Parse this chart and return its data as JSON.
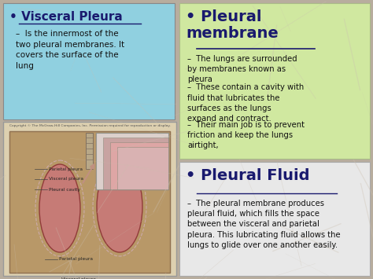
{
  "bg_color": "#b8ad9e",
  "box_visceral_color": "#90d0e0",
  "box_membrane_color": "#d0e8a0",
  "box_fluid_color": "#e8e8e8",
  "title_color": "#1a1a6e",
  "text_color": "#111111",
  "title_visceral": "Visceral Pleura",
  "bullet_visceral": "Is the innermost of the\ntwo pleural membranes. It\ncovers the surface of the\nlung",
  "title_pleural_membrane": "Pleural\nmembrane",
  "bullets_pleural_membrane": [
    "The lungs are surrounded\nby membranes known as\npleura",
    "These contain a cavity with\nfluid that lubricates the\nsurfaces as the lungs\nexpand and contract.",
    "Their main job is to prevent\nfriction and keep the lungs\nairtight,"
  ],
  "title_pleural_fluid": "Pleural Fluid",
  "bullet_pleural_fluid": "The pleural membrane produces\npleural fluid, which fills the space\nbetween the visceral and parietal\npleura. This lubricating fluid allows the\nlungs to glide over one another easily.",
  "lung_color": "#c87878",
  "lung_edge": "#8b3333",
  "image_bg": "#c8b890",
  "inset_color": "#d49090",
  "dash": "–",
  "bullet": "•"
}
